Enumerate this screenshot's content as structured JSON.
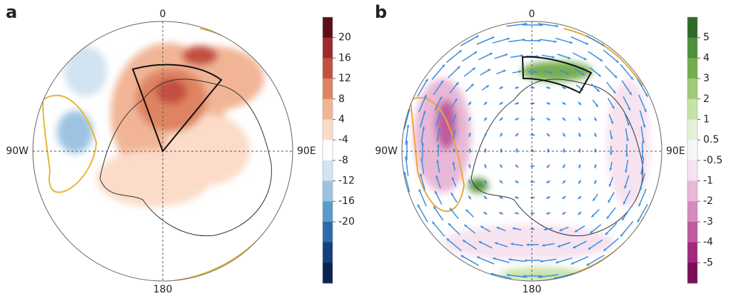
{
  "panels": [
    {
      "label": "a",
      "lon_labels": {
        "top": "0",
        "left": "90W",
        "right": "90E",
        "bottom": "180"
      },
      "colorbar": {
        "ticks": [
          20,
          16,
          12,
          8,
          4,
          -4,
          -8,
          -12,
          -16,
          -20
        ],
        "colors": [
          "#5e0f16",
          "#9e2a2b",
          "#c4503f",
          "#df8462",
          "#f1b596",
          "#fbdcc8",
          "#ffffff",
          "#d2e3f1",
          "#9cc4e2",
          "#5b9bcb",
          "#2d6aaa",
          "#163f7c",
          "#0a2352"
        ]
      }
    },
    {
      "label": "b",
      "lon_labels": {
        "top": "0",
        "left": "90W",
        "right": "90E",
        "bottom": "180"
      },
      "colorbar": {
        "ticks": [
          5,
          4,
          3,
          2,
          1,
          0.5,
          -0.5,
          -1,
          -2,
          -3,
          -4,
          -5
        ],
        "colors": [
          "#2e6b2a",
          "#4d8f3a",
          "#74ad4f",
          "#a0c97a",
          "#c8e1a9",
          "#e6f2d8",
          "#f7f7f7",
          "#f7e2ef",
          "#e8b8d6",
          "#d68bbd",
          "#c05a9f",
          "#a02a7d",
          "#7a0f55"
        ]
      }
    }
  ]
}
